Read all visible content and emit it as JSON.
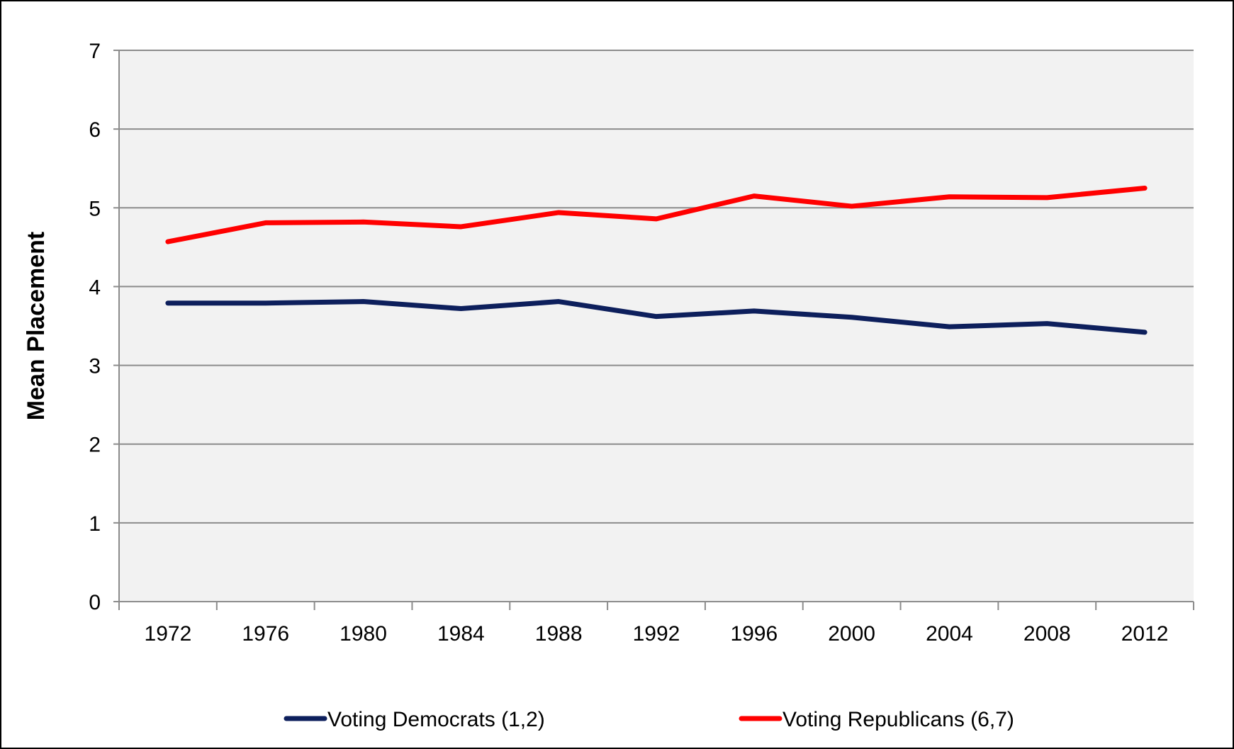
{
  "chart_data": {
    "type": "line",
    "title": "",
    "xlabel": "",
    "ylabel": "Mean Placement",
    "ylim": [
      0,
      7
    ],
    "yticks": [
      "0",
      "1",
      "2",
      "3",
      "4",
      "5",
      "6",
      "7"
    ],
    "categories": [
      "1972",
      "1976",
      "1980",
      "1984",
      "1988",
      "1992",
      "1996",
      "2000",
      "2004",
      "2008",
      "2012"
    ],
    "grid": true,
    "legend_position": "bottom",
    "series": [
      {
        "name": "Voting Democrats (1,2)",
        "color": "#0d1f5c",
        "values": [
          3.79,
          3.79,
          3.81,
          3.72,
          3.81,
          3.62,
          3.69,
          3.61,
          3.49,
          3.53,
          3.42
        ]
      },
      {
        "name": "Voting Republicans (6,7)",
        "color": "#ff0000",
        "values": [
          4.57,
          4.81,
          4.82,
          4.76,
          4.94,
          4.86,
          5.15,
          5.02,
          5.14,
          5.13,
          5.25
        ]
      }
    ],
    "colors": {
      "plot_background": "#f2f2f2",
      "gridline": "#8c8c8c",
      "frame": "#000000"
    }
  }
}
